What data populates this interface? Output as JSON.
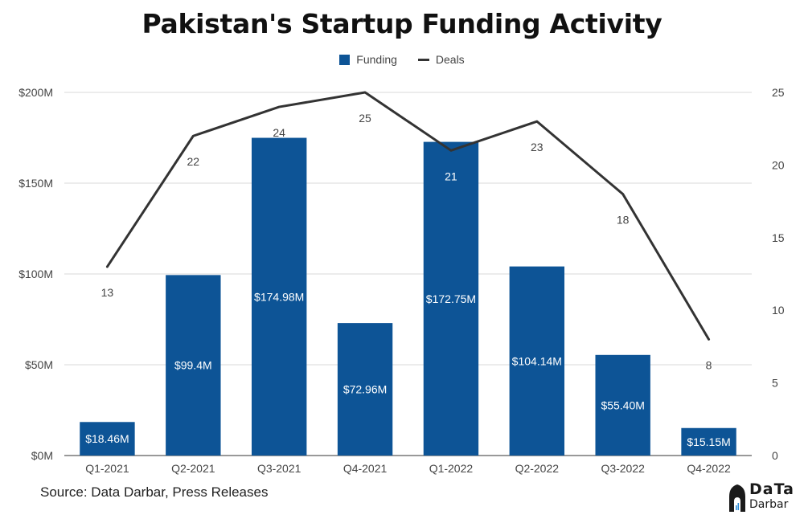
{
  "title": "Pakistan's Startup Funding Activity",
  "source": "Source: Data Darbar, Press Releases",
  "logo": {
    "line1": "DaTa",
    "line2": "Darbar"
  },
  "colors": {
    "bar": "#0d5496",
    "line": "#333333",
    "grid": "#d9d9d9",
    "axis_text": "#444444"
  },
  "chart_data": {
    "type": "bar",
    "categories": [
      "Q1-2021",
      "Q2-2021",
      "Q3-2021",
      "Q4-2021",
      "Q1-2022",
      "Q2-2022",
      "Q3-2022",
      "Q4-2022"
    ],
    "series": [
      {
        "name": "Funding",
        "type": "bar",
        "axis": "left",
        "values": [
          18.46,
          99.4,
          174.98,
          72.96,
          172.75,
          104.14,
          55.4,
          15.15
        ],
        "labels": [
          "$18.46M",
          "$99.4M",
          "$174.98M",
          "$72.96M",
          "$172.75M",
          "$104.14M",
          "$55.40M",
          "$15.15M"
        ]
      },
      {
        "name": "Deals",
        "type": "line",
        "axis": "right",
        "values": [
          13,
          22,
          24,
          25,
          21,
          23,
          18,
          8
        ],
        "labels": [
          "13",
          "22",
          "24",
          "25",
          "21",
          "23",
          "18",
          "8"
        ]
      }
    ],
    "ylim": [
      0,
      200
    ],
    "yticks": [
      0,
      50,
      100,
      150,
      200
    ],
    "ytick_labels": [
      "$0M",
      "$50M",
      "$100M",
      "$150M",
      "$200M"
    ],
    "y2lim": [
      0,
      25
    ],
    "y2ticks": [
      0,
      5,
      10,
      15,
      20,
      25
    ],
    "y2tick_labels": [
      "0",
      "5",
      "10",
      "15",
      "20",
      "25"
    ],
    "grid": true,
    "legend": "top-center"
  }
}
